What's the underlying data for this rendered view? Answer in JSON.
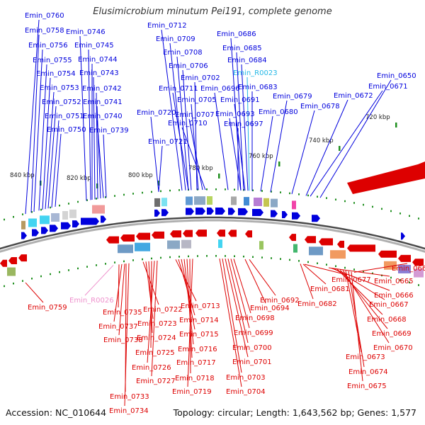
{
  "title": "Elusimicrobium minutum Pei191, complete genome",
  "footer": {
    "accession": "Accession: NC_010644",
    "topology": "Topology: circular; Length: 1,643,562 bp; Genes: 1,577"
  },
  "colors": {
    "forward_strand": "#0000dd",
    "reverse_strand": "#dd0000",
    "forward_rna": "#22b7e6",
    "reverse_rna": "#ee90cc",
    "backbone": "#8a8a8a",
    "tick": "#1f8f1f"
  },
  "kbp_ticks": [
    "840 kbp",
    "820 kbp",
    "800 kbp",
    "780 kbp",
    "760 kbp",
    "740 kbp",
    "720 kbp"
  ],
  "top_labels": [
    "Emin_0760",
    "Emin_0758",
    "Emin_0756",
    "Emin_0755",
    "Emin_0754",
    "Emin_0753",
    "Emin_0752",
    "Emin_0751",
    "Emin_0750",
    "Emin_0746",
    "Emin_0745",
    "Emin_0744",
    "Emin_0743",
    "Emin_0742",
    "Emin_0741",
    "Emin_0740",
    "Emin_0739",
    "Emin_0720",
    "Emin_0721",
    "Emin_0712",
    "Emin_0709",
    "Emin_0708",
    "Emin_0706",
    "Emin_0702",
    "Emin_0711",
    "Emin_0705",
    "Emin_0707",
    "Emin_0710",
    "Emin_0686",
    "Emin_0685",
    "Emin_0684",
    "Emin_R0023",
    "Emin_0696",
    "Emin_0683",
    "Emin_0691",
    "Emin_0679",
    "Emin_0693",
    "Emin_0697",
    "Emin_0680",
    "Emin_0678",
    "Emin_0672",
    "Emin_0671",
    "Emin_0650"
  ],
  "bottom_labels": [
    "Emin_0759",
    "Emin_R0026",
    "Emin_0735",
    "Emin_0737",
    "Emin_0738",
    "Emin_0733",
    "Emin_0734",
    "Emin_0722",
    "Emin_0723",
    "Emin_0724",
    "Emin_0725",
    "Emin_0726",
    "Emin_0727",
    "Emin_0713",
    "Emin_0714",
    "Emin_0715",
    "Emin_0716",
    "Emin_0717",
    "Emin_0718",
    "Emin_0719",
    "Emin_0692",
    "Emin_0694",
    "Emin_0698",
    "Emin_0699",
    "Emin_0700",
    "Emin_0701",
    "Emin_0703",
    "Emin_0704",
    "Emin_0677",
    "Emin_0681",
    "Emin_0682",
    "Emin_0665",
    "Emin_0666",
    "Emin_0667",
    "Emin_0668",
    "Emin_0669",
    "Emin_0670",
    "Emin_0673",
    "Emin_0674",
    "Emin_0675",
    "Emin_0664"
  ]
}
